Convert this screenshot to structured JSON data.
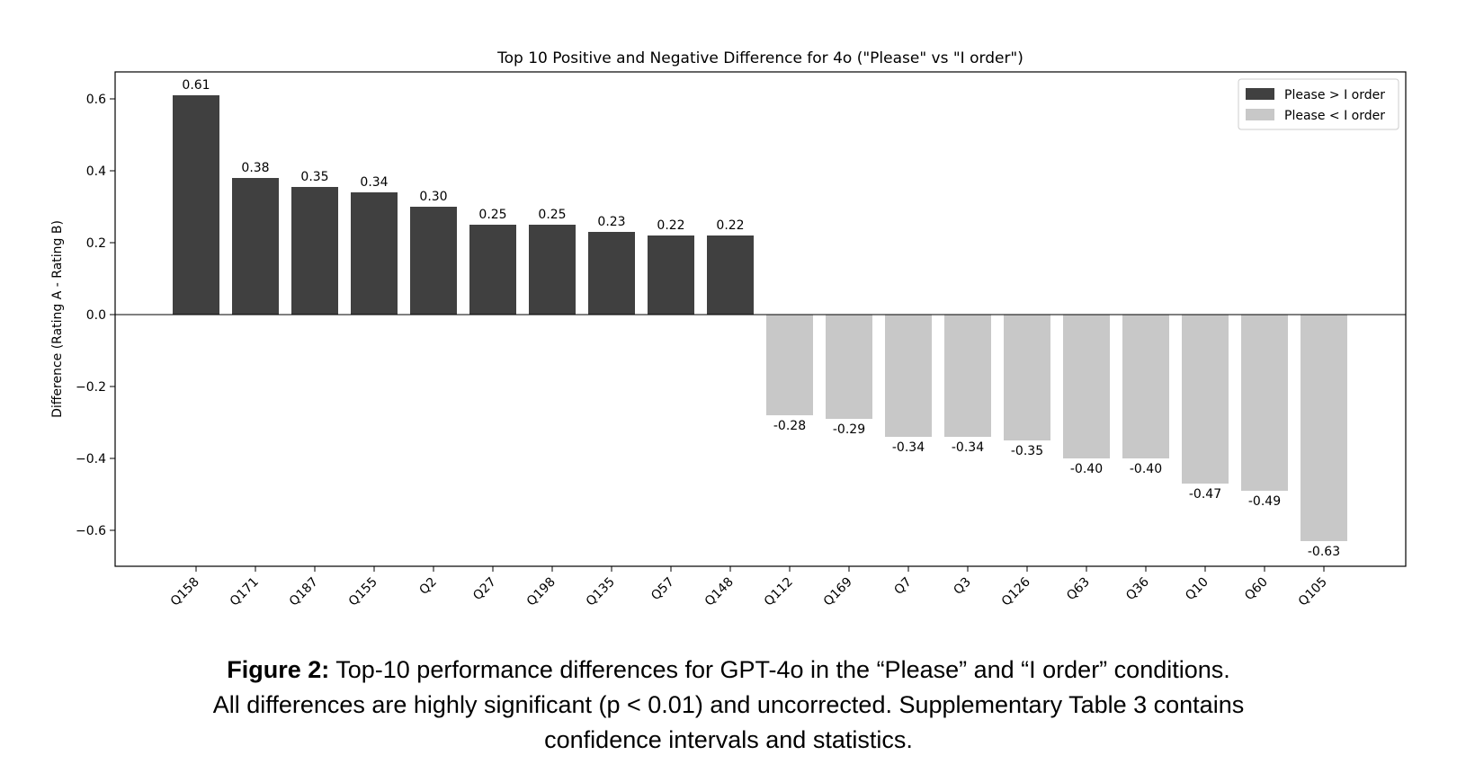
{
  "chart_data": {
    "type": "bar",
    "title": "Top 10 Positive and Negative Difference for 4o (\"Please\" vs \"I order\")",
    "xlabel": "",
    "ylabel": "Difference (Rating A - Rating B)",
    "ylim": [
      -0.7,
      0.675
    ],
    "yticks": [
      -0.6,
      -0.4,
      -0.2,
      0.0,
      0.2,
      0.4,
      0.6
    ],
    "ytick_labels": [
      "−0.6",
      "−0.4",
      "−0.2",
      "0.0",
      "0.2",
      "0.4",
      "0.6"
    ],
    "categories": [
      "Q158",
      "Q171",
      "Q187",
      "Q155",
      "Q2",
      "Q27",
      "Q198",
      "Q135",
      "Q57",
      "Q148",
      "Q112",
      "Q169",
      "Q7",
      "Q3",
      "Q126",
      "Q63",
      "Q36",
      "Q10",
      "Q60",
      "Q105"
    ],
    "values": [
      0.61,
      0.38,
      0.355,
      0.34,
      0.3,
      0.25,
      0.25,
      0.23,
      0.22,
      0.22,
      -0.28,
      -0.29,
      -0.34,
      -0.34,
      -0.35,
      -0.4,
      -0.4,
      -0.47,
      -0.49,
      -0.63
    ],
    "value_labels": [
      "0.61",
      "0.38",
      "0.35",
      "0.34",
      "0.30",
      "0.25",
      "0.25",
      "0.23",
      "0.22",
      "0.22",
      "-0.28",
      "-0.29",
      "-0.34",
      "-0.34",
      "-0.35",
      "-0.40",
      "-0.40",
      "-0.47",
      "-0.49",
      "-0.63"
    ],
    "series": [
      {
        "name": "Please > I order",
        "color": "#404040"
      },
      {
        "name": "Please < I order",
        "color": "#c8c8c8"
      }
    ],
    "legend_position": "top-right",
    "grid": false
  },
  "caption": {
    "label": "Figure 2:",
    "line1": "Top-10 performance differences for GPT-4o in the “Please” and “I order” conditions.",
    "line2": "All differences are highly significant (p < 0.01) and uncorrected. Supplementary Table 3 contains",
    "line3": "confidence intervals and statistics."
  }
}
